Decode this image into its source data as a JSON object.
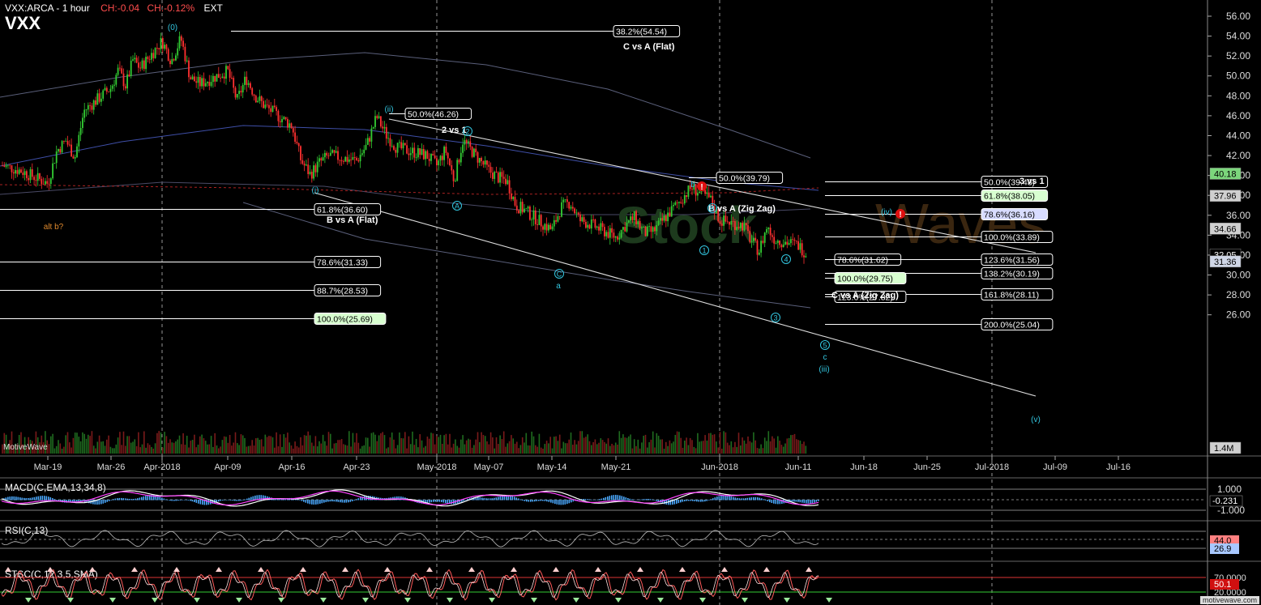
{
  "header": {
    "symbol_text": "VXX:ARCA - 1 hour",
    "change_abs": "CH:-0.04",
    "change_pct": "CH:-0.12%",
    "ext": "EXT",
    "big_symbol": "VXX"
  },
  "branding": {
    "app": "MotiveWave",
    "site": "motivewave.com",
    "watermark": "StockWaves"
  },
  "colors": {
    "background": "#000000",
    "candle_up": "#33cc33",
    "candle_down": "#ff3030",
    "wave_label": "#33c6e0",
    "fib_line": "#ffffff",
    "trend_line": "#dddddd",
    "macd_line": "#ffffff",
    "macd_signal": "#ff44ff",
    "macd_hist": "#4aa8ff",
    "stoch_k": "#ff5a5a",
    "stoch_d": "#ffe0e0"
  },
  "chart_data": [
    {
      "type": "candlestick",
      "title": "VXX:ARCA - 1 hour",
      "x_ticks": [
        "Mar-19",
        "Mar-26",
        "Apr-2018",
        "Apr-09",
        "Apr-16",
        "Apr-23",
        "May-2018",
        "May-07",
        "May-14",
        "May-21",
        "Jun-2018",
        "Jun-11",
        "Jun-18",
        "Jun-25",
        "Jul-2018",
        "Jul-09",
        "Jul-16"
      ],
      "y_ticks": [
        "56.00",
        "54.00",
        "52.00",
        "50.00",
        "48.00",
        "46.00",
        "44.00",
        "42.00",
        "40.00",
        "38.00",
        "36.00",
        "34.00",
        "32.00",
        "30.00",
        "28.00",
        "26.00"
      ],
      "ylim": [
        24.9,
        57.2
      ],
      "price_path": [
        [
          "Mar-14",
          41.0
        ],
        [
          "Mar-16",
          40.5
        ],
        [
          "Mar-19",
          39.2
        ],
        [
          "Mar-20",
          42.5
        ],
        [
          "Mar-21",
          43.5
        ],
        [
          "Mar-22",
          41.8
        ],
        [
          "Mar-23",
          46.5
        ],
        [
          "Mar-26",
          48.8
        ],
        [
          "Mar-27",
          50.6
        ],
        [
          "Mar-28",
          49.0
        ],
        [
          "Mar-29",
          51.6
        ],
        [
          "Mar-30",
          50.8
        ],
        [
          "Apr-02",
          53.5
        ],
        [
          "Apr-03",
          51.5
        ],
        [
          "Apr-04",
          53.8
        ],
        [
          "Apr-05",
          49.8
        ],
        [
          "Apr-06",
          49.2
        ],
        [
          "Apr-09",
          50.5
        ],
        [
          "Apr-10",
          47.5
        ],
        [
          "Apr-11",
          49.8
        ],
        [
          "Apr-12",
          48.0
        ],
        [
          "Apr-13",
          47.0
        ],
        [
          "Apr-16",
          45.0
        ],
        [
          "Apr-17",
          41.5
        ],
        [
          "Apr-18",
          40.1
        ],
        [
          "Apr-19",
          41.3
        ],
        [
          "Apr-20",
          42.0
        ],
        [
          "Apr-23",
          41.5
        ],
        [
          "Apr-24",
          43.0
        ],
        [
          "Apr-25",
          45.9
        ],
        [
          "Apr-26",
          44.0
        ],
        [
          "Apr-27",
          42.8
        ],
        [
          "Apr-30",
          42.0
        ],
        [
          "May-01",
          41.0
        ],
        [
          "May-02",
          42.6
        ],
        [
          "May-03",
          39.5
        ],
        [
          "May-04",
          43.5
        ],
        [
          "May-07",
          40.5
        ],
        [
          "May-08",
          39.8
        ],
        [
          "May-09",
          39.5
        ],
        [
          "May-10",
          37.0
        ],
        [
          "May-11",
          36.5
        ],
        [
          "May-14",
          34.5
        ],
        [
          "May-15",
          36.8
        ],
        [
          "May-16",
          37.3
        ],
        [
          "May-17",
          35.5
        ],
        [
          "May-18",
          35.2
        ],
        [
          "May-21",
          33.8
        ],
        [
          "May-22",
          35.0
        ],
        [
          "May-23",
          35.8
        ],
        [
          "May-24",
          34.2
        ],
        [
          "May-25",
          34.4
        ],
        [
          "May-29",
          38.8
        ],
        [
          "May-30",
          38.2
        ],
        [
          "May-31",
          37.6
        ],
        [
          "Jun-01",
          35.5
        ],
        [
          "Jun-04",
          35.0
        ],
        [
          "Jun-05",
          33.5
        ],
        [
          "Jun-06",
          32.4
        ],
        [
          "Jun-07",
          34.8
        ],
        [
          "Jun-08",
          33.6
        ],
        [
          "Jun-11",
          33.0
        ],
        [
          "Jun-12",
          32.05
        ]
      ],
      "last_price": "32.05",
      "fibonacci_levels": [
        {
          "label": "38.2%(54.54)",
          "value": 54.54
        },
        {
          "label": "50.0%(46.26)",
          "value": 46.26
        },
        {
          "label": "50.0%(39.79)",
          "value": 39.79
        },
        {
          "label": "50.0%(39.43)",
          "value": 39.43
        },
        {
          "label": "61.8%(38.05)",
          "value": 38.05
        },
        {
          "label": "61.8%(36.60)",
          "value": 36.6
        },
        {
          "label": "78.6%(36.16)",
          "value": 36.16
        },
        {
          "label": "100.0%(33.89)",
          "value": 33.89
        },
        {
          "label": "78.6%(31.62)",
          "value": 31.62
        },
        {
          "label": "123.6%(31.56)",
          "value": 31.56
        },
        {
          "label": "78.6%(31.33)",
          "value": 31.33
        },
        {
          "label": "138.2%(30.19)",
          "value": 30.19
        },
        {
          "label": "100.0%(29.75)",
          "value": 29.75
        },
        {
          "label": "88.7%(28.53)",
          "value": 28.53
        },
        {
          "label": "161.8%(28.11)",
          "value": 28.11
        },
        {
          "label": "123.6%(27.82)",
          "value": 27.82
        },
        {
          "label": "100.0%(25.69)",
          "value": 25.69
        },
        {
          "label": "200.0%(25.04)",
          "value": 25.04
        }
      ],
      "fib_group_titles": [
        "C vs A (Flat)",
        "2 vs 1",
        "B vs A (Flat)",
        "B vs A (Zig Zag)",
        "3 vs 1",
        "C vs A (Zig Zag)"
      ],
      "wave_labels": [
        "(0)",
        "(i)",
        "(ii)",
        "(iii)",
        "(iv)",
        "(v)",
        "a",
        "b",
        "c",
        "A",
        "B",
        "C",
        "1",
        "2",
        "3",
        "4",
        "5",
        "alt b?"
      ],
      "price_tags": [
        "40.18",
        "37.96",
        "34.66",
        "32.05",
        "31.36",
        "1.4M"
      ],
      "volume_label": "1.4M"
    },
    {
      "type": "line",
      "title": "MACD(C,EMA,13,34,8)",
      "y_ticks": [
        "1.000",
        "-1.000"
      ],
      "last_value": "-0.231",
      "reference_lines": [
        1.0,
        0.0,
        -1.0
      ]
    },
    {
      "type": "line",
      "title": "RSI(C,13)",
      "last_value": "26.9",
      "level_tag": "44.0",
      "reference_lines": [
        70,
        50,
        30
      ]
    },
    {
      "type": "line",
      "title": "STSC(C,12,3,5,SMA)",
      "y_ticks": [
        "70.0000",
        "20.0000"
      ],
      "last_value": "50.1",
      "reference_lines": [
        70,
        20
      ]
    }
  ]
}
